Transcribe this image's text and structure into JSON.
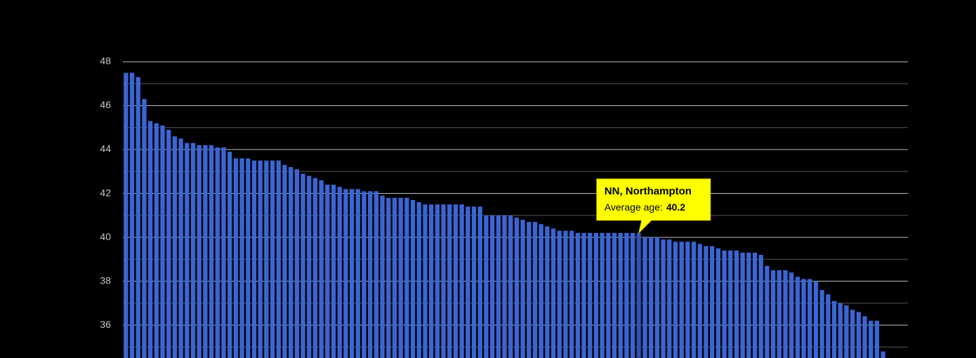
{
  "chart_data": {
    "type": "bar",
    "categories": [
      null,
      null,
      null,
      null,
      null,
      null,
      null,
      null,
      null,
      null,
      null,
      null,
      null,
      null,
      null,
      null,
      null,
      null,
      null,
      null,
      null,
      null,
      null,
      null,
      null,
      null,
      null,
      null,
      null,
      null,
      null,
      null,
      null,
      null,
      null,
      null,
      null,
      null,
      null,
      null,
      null,
      null,
      null,
      null,
      null,
      null,
      null,
      null,
      null,
      null,
      null,
      null,
      null,
      null,
      null,
      null,
      null,
      null,
      null,
      null,
      null,
      null,
      null,
      null,
      null,
      null,
      null,
      null,
      null,
      null,
      null,
      null,
      null,
      null,
      null,
      null,
      null,
      null,
      null,
      null,
      null,
      null,
      null,
      null,
      "NN, Northampton",
      null,
      null,
      null,
      null,
      null,
      null,
      null,
      null,
      null,
      null,
      null,
      null,
      null,
      null,
      null,
      null,
      null,
      null,
      null,
      null,
      null,
      null,
      null,
      null,
      null,
      null,
      null,
      null,
      null,
      null,
      null,
      null,
      null,
      null,
      null,
      null,
      null,
      null,
      null,
      null
    ],
    "values": [
      47.5,
      47.5,
      47.3,
      46.3,
      45.3,
      45.2,
      45.1,
      44.9,
      44.6,
      44.5,
      44.3,
      44.3,
      44.2,
      44.2,
      44.2,
      44.1,
      44.1,
      43.9,
      43.6,
      43.6,
      43.6,
      43.5,
      43.5,
      43.5,
      43.5,
      43.5,
      43.3,
      43.2,
      43.1,
      42.9,
      42.8,
      42.7,
      42.6,
      42.4,
      42.4,
      42.3,
      42.2,
      42.2,
      42.2,
      42.1,
      42.1,
      42.1,
      41.9,
      41.8,
      41.8,
      41.8,
      41.8,
      41.7,
      41.6,
      41.5,
      41.5,
      41.5,
      41.5,
      41.5,
      41.5,
      41.5,
      41.4,
      41.4,
      41.4,
      41.0,
      41.0,
      41.0,
      41.0,
      41.0,
      40.9,
      40.8,
      40.7,
      40.7,
      40.6,
      40.5,
      40.4,
      40.3,
      40.3,
      40.3,
      40.2,
      40.2,
      40.2,
      40.2,
      40.2,
      40.2,
      40.2,
      40.2,
      40.2,
      40.2,
      40.2,
      40.0,
      40.0,
      40.0,
      39.9,
      39.9,
      39.8,
      39.8,
      39.8,
      39.8,
      39.7,
      39.6,
      39.6,
      39.5,
      39.4,
      39.4,
      39.4,
      39.3,
      39.3,
      39.3,
      39.2,
      38.7,
      38.5,
      38.5,
      38.5,
      38.4,
      38.2,
      38.1,
      38.1,
      38.0,
      37.6,
      37.4,
      37.1,
      37.0,
      36.9,
      36.7,
      36.6,
      36.4,
      36.2,
      36.2,
      34.8
    ],
    "color": "#3a65d4",
    "highlight_color": "#2f55b8",
    "tooltip_label": "Average age:",
    "tooltip_color": "#ffff00",
    "ylim": [
      34.5,
      48
    ],
    "yticks": [
      36,
      38,
      40,
      42,
      44,
      46,
      48
    ],
    "minor_yticks": [
      35,
      37,
      39,
      41,
      43,
      45,
      47
    ],
    "grid": true
  }
}
